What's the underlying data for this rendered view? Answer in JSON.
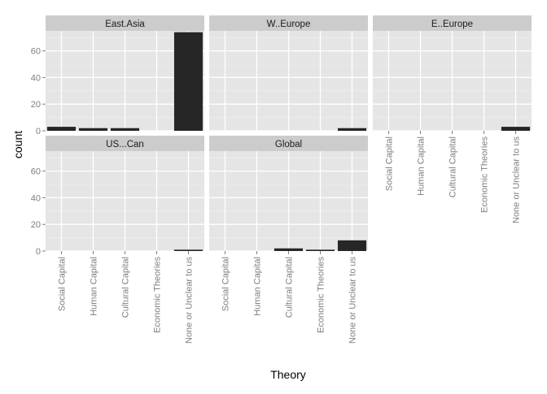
{
  "chart_data": {
    "type": "bar",
    "xlabel": "Theory",
    "ylabel": "count",
    "ylim": [
      0,
      75
    ],
    "yticks": [
      0,
      20,
      40,
      60
    ],
    "categories": [
      "Social Capital",
      "Human Capital",
      "Cultural Capital",
      "Economic Theories",
      "None or Unclear to us"
    ],
    "grid": true,
    "panels": [
      {
        "name": "East.Asia",
        "values": [
          3,
          2,
          2,
          0,
          74
        ]
      },
      {
        "name": "W..Europe",
        "values": [
          0,
          0,
          0,
          0,
          2
        ]
      },
      {
        "name": "E..Europe",
        "values": [
          0,
          0,
          0,
          0,
          3
        ]
      },
      {
        "name": "US...Can",
        "values": [
          0,
          0,
          0,
          0,
          1
        ]
      },
      {
        "name": "Global",
        "values": [
          0,
          0,
          2,
          1,
          8
        ]
      }
    ],
    "colors": {
      "panel_background": "#E5E5E5",
      "strip_background": "#CCCCCC",
      "bar_fill": "#262626",
      "grid": "#FFFFFF",
      "tick_text": "#7F7F7F"
    }
  }
}
